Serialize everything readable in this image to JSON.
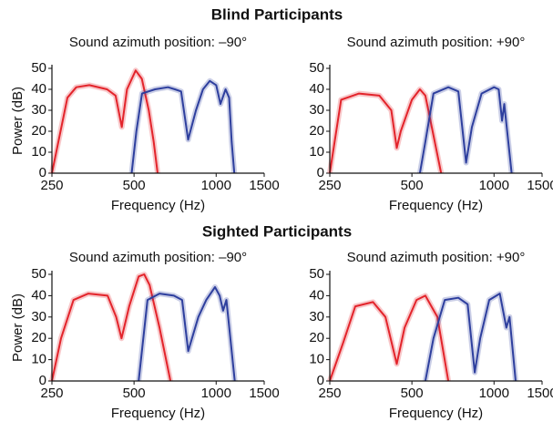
{
  "headings": [
    "Blind Participants",
    "Sighted Participants"
  ],
  "chart_data": [
    {
      "type": "line",
      "title": "Sound azimuth position: –90°",
      "xlabel": "Frequency (Hz)",
      "ylabel": "Power (dB)",
      "xscale": "log",
      "xlim": [
        250,
        1500
      ],
      "xticks": [
        250,
        500,
        1000,
        1500
      ],
      "ylim": [
        0,
        50
      ],
      "yticks": [
        0,
        10,
        20,
        30,
        40,
        50
      ],
      "series": [
        {
          "color": "#e3242b",
          "x": [
            250,
            285,
            307,
            343,
            398,
            428,
            451,
            471,
            507,
            534,
            566,
            590,
            610
          ],
          "values": [
            0,
            36,
            41,
            42,
            40,
            37,
            22,
            40,
            49,
            45,
            30,
            15,
            0
          ]
        },
        {
          "color": "#2e3f9e",
          "x": [
            490,
            510,
            535,
            597,
            666,
            706,
            744,
            789,
            843,
            895,
            948,
            1000,
            1037,
            1083,
            1116,
            1140,
            1166
          ],
          "values": [
            0,
            20,
            38,
            40,
            41,
            40,
            39,
            16,
            30,
            40,
            44,
            42,
            33,
            40,
            36,
            15,
            0
          ]
        }
      ]
    },
    {
      "type": "line",
      "title": "Sound azimuth position: +90°",
      "xlabel": "Frequency (Hz)",
      "xscale": "log",
      "xlim": [
        250,
        1500
      ],
      "xticks": [
        250,
        500,
        1000,
        1500
      ],
      "ylim": [
        0,
        50
      ],
      "yticks": [
        0,
        10,
        20,
        30,
        40,
        50
      ],
      "series": [
        {
          "color": "#e3242b",
          "x": [
            250,
            275,
            320,
            380,
            420,
            440,
            455,
            500,
            535,
            560,
            600,
            640
          ],
          "values": [
            0,
            35,
            38,
            37,
            30,
            12,
            20,
            35,
            40,
            37,
            18,
            0
          ]
        },
        {
          "color": "#2e3f9e",
          "x": [
            535,
            560,
            600,
            680,
            740,
            790,
            830,
            900,
            1000,
            1040,
            1070,
            1090,
            1160
          ],
          "values": [
            0,
            15,
            38,
            41,
            39,
            5,
            22,
            38,
            41,
            40,
            25,
            33,
            0
          ]
        }
      ]
    },
    {
      "type": "line",
      "title": "Sound azimuth position: –90°",
      "xlabel": "Frequency (Hz)",
      "ylabel": "Power (dB)",
      "xscale": "log",
      "xlim": [
        250,
        1500
      ],
      "xticks": [
        250,
        500,
        1000,
        1500
      ],
      "ylim": [
        0,
        50
      ],
      "yticks": [
        0,
        10,
        20,
        30,
        40,
        50
      ],
      "series": [
        {
          "color": "#e3242b",
          "x": [
            250,
            270,
            300,
            340,
            400,
            430,
            450,
            480,
            520,
            545,
            570,
            620,
            680
          ],
          "values": [
            0,
            20,
            38,
            41,
            40,
            30,
            20,
            35,
            49,
            50,
            45,
            25,
            0
          ]
        },
        {
          "color": "#2e3f9e",
          "x": [
            520,
            560,
            620,
            700,
            750,
            790,
            860,
            920,
            990,
            1030,
            1060,
            1090,
            1170
          ],
          "values": [
            0,
            38,
            41,
            40,
            38,
            14,
            30,
            38,
            44,
            40,
            33,
            38,
            0
          ]
        }
      ]
    },
    {
      "type": "line",
      "title": "Sound azimuth position: +90°",
      "xlabel": "Frequency (Hz)",
      "xscale": "log",
      "xlim": [
        250,
        1500
      ],
      "xticks": [
        250,
        500,
        1000,
        1500
      ],
      "ylim": [
        0,
        50
      ],
      "yticks": [
        0,
        10,
        20,
        30,
        40,
        50
      ],
      "series": [
        {
          "color": "#e3242b",
          "x": [
            250,
            280,
            310,
            360,
            400,
            440,
            470,
            520,
            560,
            620,
            680
          ],
          "values": [
            0,
            18,
            35,
            37,
            30,
            8,
            25,
            38,
            40,
            30,
            0
          ]
        },
        {
          "color": "#2e3f9e",
          "x": [
            560,
            600,
            660,
            740,
            800,
            850,
            890,
            960,
            1050,
            1110,
            1140,
            1200
          ],
          "values": [
            0,
            20,
            38,
            39,
            36,
            4,
            20,
            38,
            41,
            25,
            30,
            0
          ]
        }
      ]
    }
  ]
}
